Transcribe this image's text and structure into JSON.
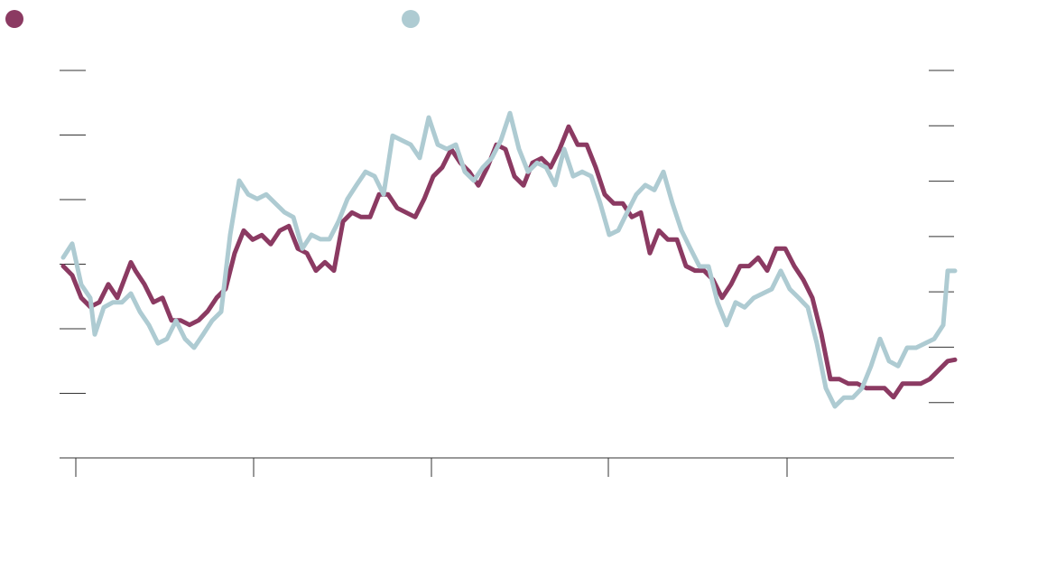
{
  "chart_data": {
    "type": "line",
    "xlim": [
      0,
      991
    ],
    "xticks": [
      18,
      215,
      412,
      608,
      806
    ],
    "ylim": [
      0,
      6
    ],
    "yticks": [
      1,
      2,
      3,
      4,
      5,
      6
    ],
    "y2lim": [
      0,
      7
    ],
    "y2ticks": [
      1,
      2,
      3,
      4,
      5,
      6,
      7
    ],
    "series": [
      {
        "color": "#8b3a62",
        "x": [
          4,
          14,
          24,
          34,
          44,
          54,
          64,
          79,
          84,
          94,
          104,
          114,
          124,
          134,
          144,
          154,
          164,
          174,
          184,
          194,
          204,
          214,
          224,
          234,
          244,
          254,
          264,
          274,
          284,
          294,
          304,
          314,
          324,
          334,
          344,
          354,
          364,
          374,
          384,
          394,
          404,
          414,
          424,
          434,
          444,
          454,
          464,
          474,
          484,
          494,
          504,
          514,
          524,
          534,
          544,
          554,
          564,
          574,
          584,
          594,
          604,
          614,
          624,
          634,
          644,
          654,
          664,
          674,
          684,
          694,
          704,
          714,
          724,
          734,
          744,
          754,
          764,
          774,
          784,
          794,
          804,
          814,
          824,
          834,
          844,
          854,
          864,
          874,
          884,
          894,
          904,
          914,
          924,
          934,
          944,
          954,
          964,
          974,
          984,
          992
        ],
        "values": [
          2.97,
          2.83,
          2.48,
          2.34,
          2.41,
          2.69,
          2.48,
          3.03,
          2.9,
          2.69,
          2.41,
          2.48,
          2.13,
          2.13,
          2.06,
          2.13,
          2.27,
          2.48,
          2.62,
          3.17,
          3.52,
          3.38,
          3.45,
          3.31,
          3.52,
          3.59,
          3.24,
          3.17,
          2.9,
          3.03,
          2.9,
          3.66,
          3.8,
          3.73,
          3.73,
          4.08,
          4.08,
          3.87,
          3.8,
          3.73,
          4.01,
          4.36,
          4.5,
          4.78,
          4.57,
          4.43,
          4.22,
          4.5,
          4.85,
          4.78,
          4.36,
          4.22,
          4.57,
          4.64,
          4.5,
          4.78,
          5.13,
          4.85,
          4.85,
          4.5,
          4.08,
          3.94,
          3.94,
          3.73,
          3.8,
          3.17,
          3.52,
          3.38,
          3.38,
          2.97,
          2.9,
          2.9,
          2.76,
          2.48,
          2.69,
          2.97,
          2.97,
          3.1,
          2.9,
          3.24,
          3.24,
          2.97,
          2.76,
          2.48,
          1.92,
          1.22,
          1.22,
          1.15,
          1.15,
          1.08,
          1.08,
          1.08,
          0.94,
          1.15,
          1.15,
          1.15,
          1.22,
          1.36,
          1.5,
          1.52
        ]
      },
      {
        "color": "#aecbd2",
        "axis": "y2",
        "x": [
          4,
          14,
          24,
          34,
          39,
          49,
          59,
          69,
          79,
          89,
          99,
          109,
          119,
          129,
          139,
          149,
          159,
          169,
          179,
          189,
          199,
          209,
          219,
          229,
          239,
          249,
          259,
          269,
          279,
          289,
          299,
          309,
          319,
          329,
          339,
          349,
          359,
          369,
          379,
          389,
          399,
          409,
          419,
          429,
          439,
          449,
          459,
          469,
          479,
          489,
          499,
          509,
          519,
          529,
          539,
          549,
          559,
          569,
          579,
          589,
          599,
          609,
          619,
          629,
          639,
          649,
          659,
          669,
          679,
          689,
          699,
          709,
          719,
          729,
          739,
          749,
          759,
          769,
          779,
          789,
          799,
          809,
          819,
          829,
          839,
          849,
          859,
          869,
          879,
          889,
          899,
          909,
          919,
          929,
          939,
          949,
          959,
          969,
          979,
          984,
          992
        ],
        "values": [
          3.62,
          3.87,
          3.13,
          2.89,
          2.23,
          2.72,
          2.81,
          2.81,
          2.97,
          2.64,
          2.4,
          2.07,
          2.15,
          2.48,
          2.15,
          1.99,
          2.23,
          2.48,
          2.64,
          4.03,
          5.01,
          4.76,
          4.68,
          4.76,
          4.6,
          4.44,
          4.35,
          3.78,
          4.03,
          3.95,
          3.95,
          4.27,
          4.68,
          4.93,
          5.17,
          5.09,
          4.76,
          5.82,
          5.74,
          5.66,
          5.42,
          6.15,
          5.66,
          5.58,
          5.66,
          5.17,
          5.01,
          5.25,
          5.42,
          5.74,
          6.23,
          5.58,
          5.17,
          5.33,
          5.25,
          4.93,
          5.58,
          5.09,
          5.17,
          5.09,
          4.6,
          4.03,
          4.11,
          4.44,
          4.76,
          4.93,
          4.84,
          5.17,
          4.6,
          4.11,
          3.78,
          3.46,
          3.46,
          2.81,
          2.4,
          2.81,
          2.72,
          2.89,
          2.97,
          3.05,
          3.38,
          3.05,
          2.89,
          2.72,
          2.07,
          1.26,
          0.93,
          1.09,
          1.09,
          1.26,
          1.66,
          2.15,
          1.75,
          1.66,
          1.99,
          1.99,
          2.07,
          2.15,
          2.4,
          3.38,
          3.38
        ]
      }
    ]
  }
}
